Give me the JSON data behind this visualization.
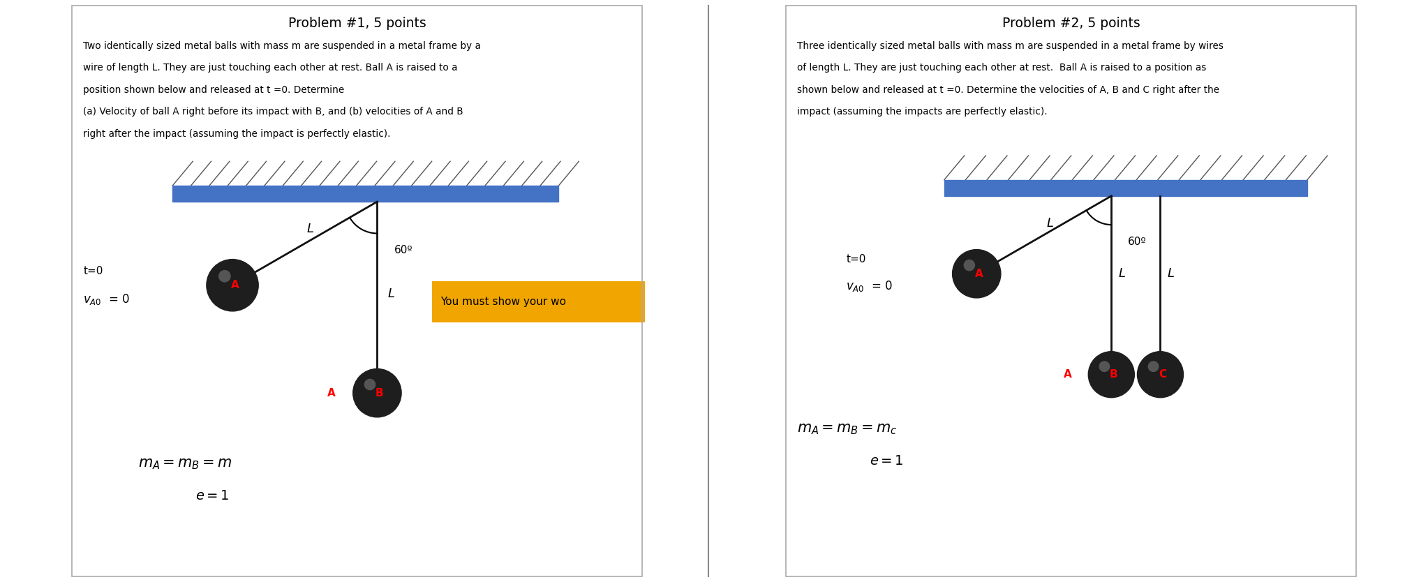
{
  "bg_color": "#ffffff",
  "border_color": "#aaaaaa",
  "title1": "Problem #1, 5 points",
  "title2": "Problem #2, 5 points",
  "text1_lines": [
    "Two identically sized metal balls with mass m are suspended in a metal frame by a",
    "wire of length L. They are just touching each other at rest. Ball A is raised to a",
    "position shown below and released at t =0. Determine",
    "(a) Velocity of ball A right before its impact with B, and (b) velocities of A and B",
    "right after the impact (assuming the impact is perfectly elastic)."
  ],
  "text2_lines": [
    "Three identically sized metal balls with mass m are suspended in a metal frame by wires",
    "of length L. They are just touching each other at rest.  Ball A is raised to a position as",
    "shown below and released at t =0. Determine the velocities of A, B and C right after the",
    "impact (assuming the impacts are perfectly elastic)."
  ],
  "yellow_box_text": "You must show your wo",
  "yellow_bg": "#f0a500",
  "beam_color": "#4472c4",
  "hatch_color": "#555555",
  "wire_color": "#111111",
  "ball_dark": "#1e1e1e",
  "angle_label": "60º",
  "wire_label": "L",
  "label_A": "A",
  "label_B": "B",
  "label_C": "C"
}
